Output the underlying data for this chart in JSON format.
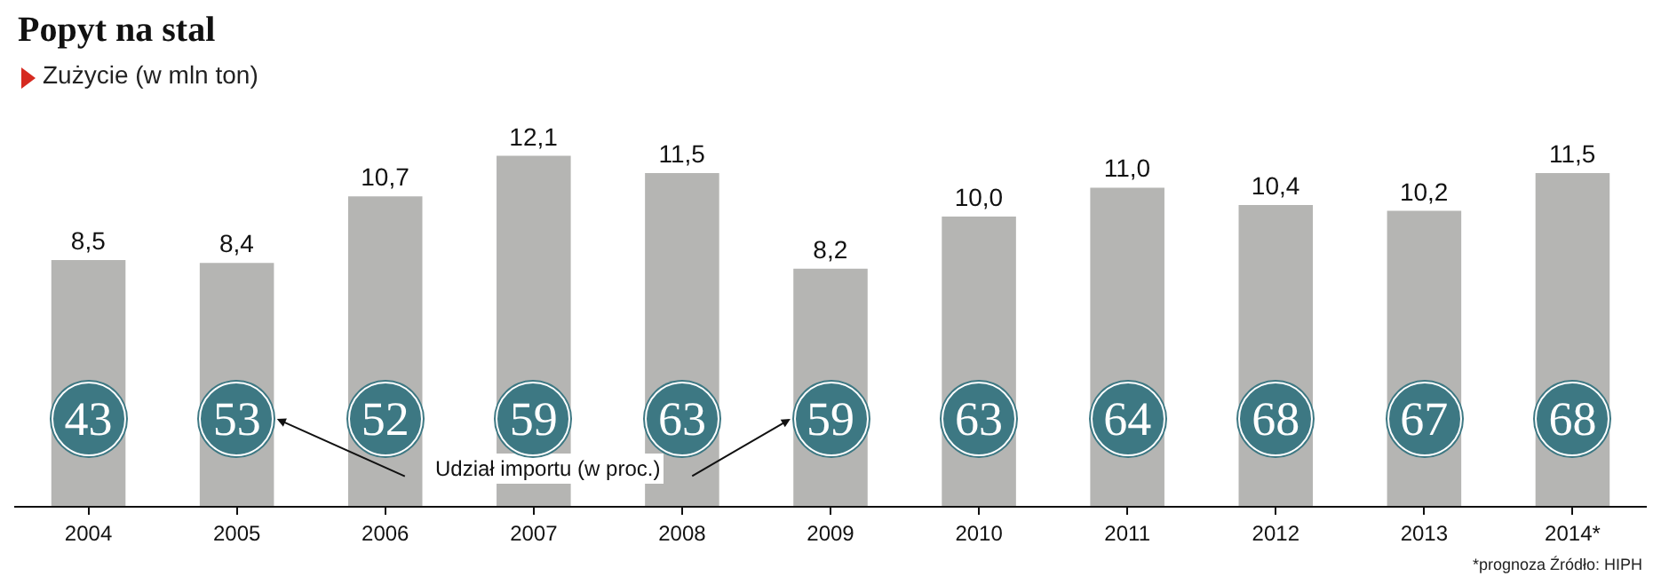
{
  "chart_data": {
    "type": "bar",
    "title": "Popyt na stal",
    "subtitle": "Zużycie (w mln ton)",
    "categories": [
      "2004",
      "2005",
      "2006",
      "2007",
      "2008",
      "2009",
      "2010",
      "2011",
      "2012",
      "2013",
      "2014*"
    ],
    "series": [
      {
        "color": "#b5b5b3",
        "values": [
          8.5,
          8.4,
          10.7,
          12.1,
          11.5,
          8.2,
          10.0,
          11.0,
          10.4,
          10.2,
          11.5
        ],
        "value_labels": [
          "8,5",
          "8,4",
          "10,7",
          "12,1",
          "11,5",
          "8,2",
          "10,0",
          "11,0",
          "10,4",
          "10,2",
          "11,5"
        ]
      }
    ],
    "tick_labels": "x",
    "grid": false,
    "annotations": [
      {
        "text": "43",
        "x": "2004"
      },
      {
        "text": "53",
        "x": "2005"
      },
      {
        "text": "52",
        "x": "2006"
      },
      {
        "text": "59",
        "x": "2007"
      },
      {
        "text": "63",
        "x": "2008"
      },
      {
        "text": "59",
        "x": "2009"
      },
      {
        "text": "63",
        "x": "2010"
      },
      {
        "text": "64",
        "x": "2011"
      },
      {
        "text": "68",
        "x": "2012"
      },
      {
        "text": "67",
        "x": "2013"
      },
      {
        "text": "68",
        "x": "2014*"
      },
      "Udział importu (w proc.)",
      "*prognoza Źródło: HIPH"
    ]
  }
}
